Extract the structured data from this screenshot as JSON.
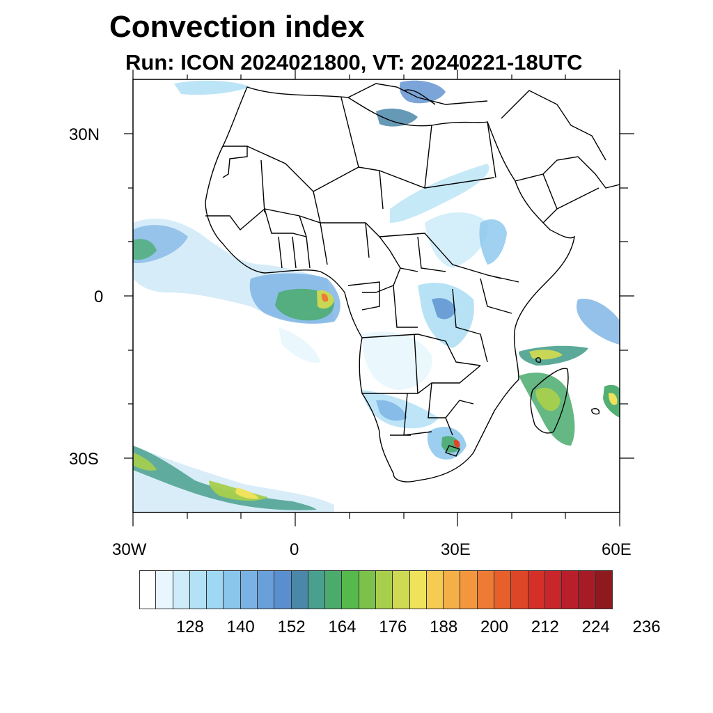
{
  "title": "Convection index",
  "subtitle": "Run: ICON 2024021800,  VT: 20240221-18UTC",
  "axes": {
    "y_labels": [
      "30N",
      "0",
      "30S"
    ],
    "x_labels": [
      "30W",
      "0",
      "30E",
      "60E"
    ]
  },
  "colorbar": {
    "labels": [
      "128",
      "140",
      "152",
      "164",
      "176",
      "188",
      "200",
      "212",
      "224",
      "236"
    ],
    "colors": [
      "#ffffff",
      "#e8f6fd",
      "#cdebf9",
      "#b3e1f6",
      "#9fd8f3",
      "#8ac5ec",
      "#79b2e3",
      "#6aa0d9",
      "#5a8fcf",
      "#4b87a9",
      "#49a08e",
      "#4aab6d",
      "#55b94c",
      "#7cc24a",
      "#a7cf4c",
      "#cfd951",
      "#eee35a",
      "#f6cb52",
      "#f4b047",
      "#f3963e",
      "#ee7b33",
      "#e7602c",
      "#de4628",
      "#d53027",
      "#c8262b",
      "#b91f2b",
      "#a71b26",
      "#8e1a1e"
    ]
  },
  "chart_data": {
    "type": "heatmap",
    "title": "Convection index",
    "subtitle": "Run: ICON 2024021800,  VT: 20240221-18UTC",
    "x_range": [
      -30,
      60
    ],
    "y_range": [
      -40,
      40
    ],
    "x_ticks": [
      "30W",
      "0",
      "30E",
      "60E"
    ],
    "y_ticks": [
      "30N",
      "0",
      "30S"
    ],
    "colorbar_ticks": [
      128,
      140,
      152,
      164,
      176,
      188,
      200,
      212,
      224,
      236
    ]
  }
}
